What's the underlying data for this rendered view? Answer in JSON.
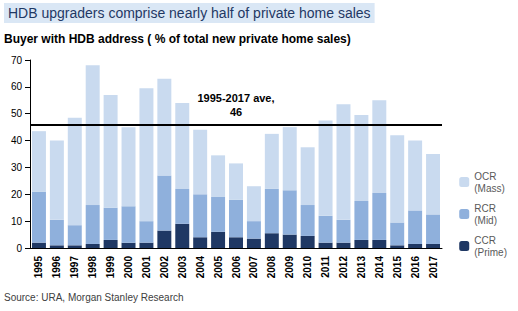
{
  "chart_data": {
    "type": "bar",
    "title": "HDB upgraders comprise nearly half of private home sales",
    "subtitle": "Buyer with HDB address ( % of total new private home sales)",
    "source": "Source: URA, Morgan Stanley Research",
    "categories": [
      "1995",
      "1996",
      "1997",
      "1998",
      "1999",
      "2000",
      "2001",
      "2002",
      "2003",
      "2004",
      "2005",
      "2006",
      "2007",
      "2008",
      "2009",
      "2010",
      "2011",
      "2012",
      "2013",
      "2014",
      "2015",
      "2016",
      "2017"
    ],
    "series": [
      {
        "name": "CCR (Prime)",
        "color": "#1f3864",
        "values": [
          2,
          1,
          1,
          1.5,
          3,
          2,
          2,
          6.5,
          9,
          4,
          6,
          4,
          3.5,
          5.5,
          5,
          4.5,
          2,
          2,
          3,
          3,
          1,
          1.5,
          1.5
        ]
      },
      {
        "name": "RCR (Mid)",
        "color": "#8fb0dc",
        "values": [
          19,
          9.5,
          7.5,
          14.5,
          12,
          13.5,
          8,
          20.5,
          13,
          16,
          13,
          14,
          6.5,
          16.5,
          16.5,
          11.5,
          10,
          8.5,
          14.5,
          17.5,
          8.5,
          12.5,
          11
        ]
      },
      {
        "name": "OCR (Mass)",
        "color": "#c9daef",
        "values": [
          22.5,
          29.5,
          40,
          52,
          42,
          29.5,
          49.5,
          36,
          32,
          24,
          15.5,
          13.5,
          13,
          20.5,
          23.5,
          21.5,
          35.5,
          43,
          32,
          34.5,
          32.5,
          26,
          22.5
        ]
      }
    ],
    "annotations": [
      {
        "text": "1995-2017 ave,",
        "value": 46
      }
    ],
    "stacked": true,
    "ylim": [
      0,
      70
    ],
    "yticks": [
      0,
      10,
      20,
      30,
      40,
      50,
      60,
      70
    ],
    "grid": false,
    "legend": "right"
  }
}
